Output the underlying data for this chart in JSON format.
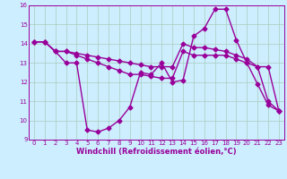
{
  "xlabel": "Windchill (Refroidissement éolien,°C)",
  "bg_color": "#cceeff",
  "grid_color": "#aaccbb",
  "line_color": "#990099",
  "xlim": [
    -0.5,
    23.5
  ],
  "ylim": [
    9,
    16
  ],
  "yticks": [
    9,
    10,
    11,
    12,
    13,
    14,
    15,
    16
  ],
  "xticks": [
    0,
    1,
    2,
    3,
    4,
    5,
    6,
    7,
    8,
    9,
    10,
    11,
    12,
    13,
    14,
    15,
    16,
    17,
    18,
    19,
    20,
    21,
    22,
    23
  ],
  "line1_x": [
    0,
    1,
    2,
    3,
    4,
    5,
    6,
    7,
    8,
    9,
    10,
    11,
    12,
    13,
    14,
    15,
    16,
    17,
    18,
    19,
    20,
    21,
    22,
    23
  ],
  "line1_y": [
    14.1,
    14.1,
    13.6,
    13.0,
    13.0,
    9.5,
    9.4,
    9.6,
    10.0,
    10.7,
    12.5,
    12.4,
    13.0,
    12.0,
    12.1,
    14.4,
    14.8,
    15.8,
    15.8,
    14.2,
    13.0,
    11.9,
    10.8,
    10.5
  ],
  "line2_x": [
    0,
    1,
    2,
    3,
    4,
    5,
    6,
    7,
    8,
    9,
    10,
    11,
    12,
    13,
    14,
    15,
    16,
    17,
    18,
    19,
    20,
    21,
    22,
    23
  ],
  "line2_y": [
    14.1,
    14.1,
    13.6,
    13.6,
    13.4,
    13.2,
    13.0,
    12.8,
    12.6,
    12.4,
    12.4,
    12.3,
    12.2,
    12.2,
    13.6,
    13.4,
    13.4,
    13.4,
    13.4,
    13.2,
    13.0,
    12.8,
    11.0,
    10.5
  ],
  "line3_x": [
    0,
    1,
    2,
    3,
    4,
    5,
    6,
    7,
    8,
    9,
    10,
    11,
    12,
    13,
    14,
    15,
    16,
    17,
    18,
    19,
    20,
    21,
    22,
    23
  ],
  "line3_y": [
    14.1,
    14.1,
    13.6,
    13.6,
    13.5,
    13.4,
    13.3,
    13.2,
    13.1,
    13.0,
    12.9,
    12.8,
    12.8,
    12.8,
    14.0,
    13.8,
    13.8,
    13.7,
    13.6,
    13.4,
    13.2,
    12.8,
    12.8,
    10.5
  ],
  "marker": "D",
  "markersize": 2.5,
  "linewidth": 1.0,
  "tick_fontsize": 5.0,
  "label_fontsize": 6.0
}
